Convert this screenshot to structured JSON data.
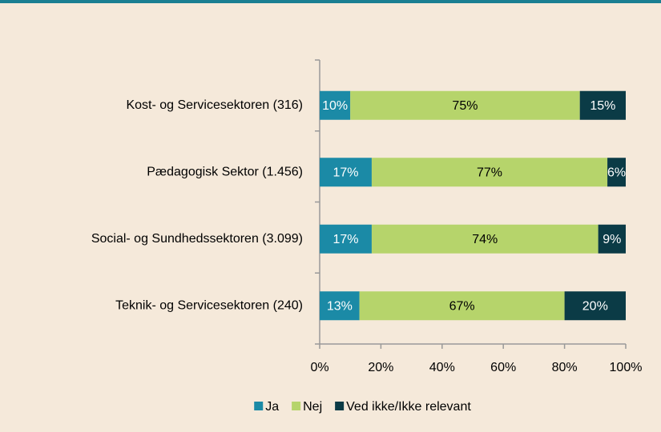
{
  "chart_data": {
    "type": "stacked_barh",
    "categories": [
      "Kost- og Servicesektoren (316)",
      "Pædagogisk Sektor (1.456)",
      "Social- og Sundhedssektoren (3.099)",
      "Teknik- og Servicesektoren (240)"
    ],
    "series": [
      {
        "name": "Ja",
        "color": "#1b8aa6",
        "label_color": "#ffffff",
        "values": [
          10,
          17,
          17,
          13
        ],
        "value_labels": [
          "10%",
          "17%",
          "17%",
          "13%"
        ]
      },
      {
        "name": "Nej",
        "color": "#b6d46b",
        "label_color": "#000000",
        "values": [
          75,
          77,
          74,
          67
        ],
        "value_labels": [
          "75%",
          "77%",
          "74%",
          "67%"
        ]
      },
      {
        "name": "Ved ikke/Ikke relevant",
        "color": "#0b3b46",
        "label_color": "#ffffff",
        "values": [
          15,
          6,
          9,
          20
        ],
        "value_labels": [
          "15%",
          "6%",
          "9%",
          "20%"
        ]
      }
    ],
    "xlim": [
      0,
      100
    ],
    "xticks": [
      {
        "value": 0,
        "label": "0%"
      },
      {
        "value": 20,
        "label": "20%"
      },
      {
        "value": 40,
        "label": "40%"
      },
      {
        "value": 60,
        "label": "60%"
      },
      {
        "value": 80,
        "label": "80%"
      },
      {
        "value": 100,
        "label": "100%"
      }
    ],
    "legend": "bottom"
  }
}
